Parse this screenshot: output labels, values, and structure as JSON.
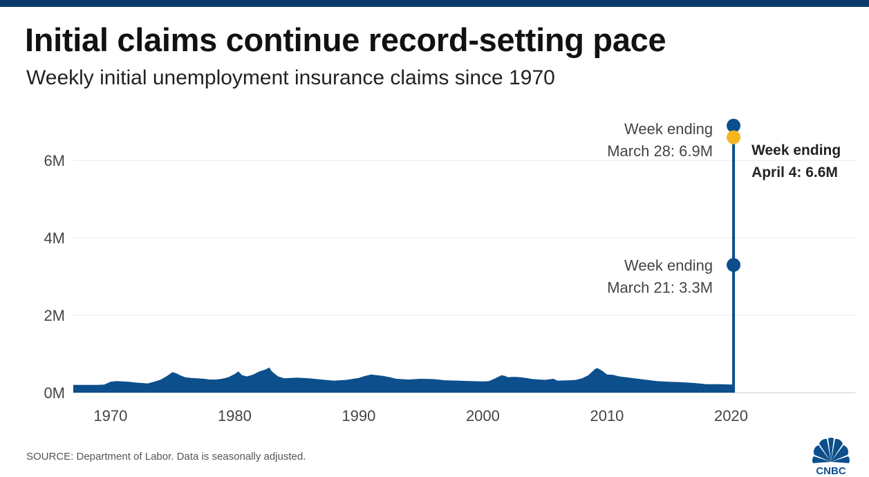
{
  "header": {
    "title": "Initial claims continue record-setting pace",
    "subtitle": "Weekly initial unemployment insurance claims since 1970"
  },
  "footer": {
    "source": "SOURCE: Department of Labor. Data is seasonally adjusted.",
    "logo_text": "CNBC"
  },
  "colors": {
    "series": "#0c4f8c",
    "highlight": "#f5b521",
    "grid": "#e6e6e6",
    "top_bar": "#0c3a6b"
  },
  "chart_data": {
    "type": "area",
    "title": "Initial claims continue record-setting pace",
    "subtitle": "Weekly initial unemployment insurance claims since 1970",
    "xlabel": "",
    "ylabel": "",
    "xlim": [
      1967,
      2030
    ],
    "ylim": [
      0,
      7.2
    ],
    "grid": true,
    "y_ticks": [
      {
        "value": 0,
        "label": "0M"
      },
      {
        "value": 2,
        "label": "2M"
      },
      {
        "value": 4,
        "label": "4M"
      },
      {
        "value": 6,
        "label": "6M"
      }
    ],
    "x_ticks": [
      {
        "value": 1970,
        "label": "1970"
      },
      {
        "value": 1980,
        "label": "1980"
      },
      {
        "value": 1990,
        "label": "1990"
      },
      {
        "value": 2000,
        "label": "2000"
      },
      {
        "value": 2010,
        "label": "2010"
      },
      {
        "value": 2020,
        "label": "2020"
      }
    ],
    "series": [
      {
        "name": "",
        "x": [
          1967.0,
          1968.0,
          1969.0,
          1969.5,
          1970.0,
          1970.5,
          1971.0,
          1971.5,
          1972.0,
          1972.5,
          1973.0,
          1973.5,
          1974.0,
          1974.5,
          1975.0,
          1975.3,
          1975.6,
          1976.0,
          1976.5,
          1977.0,
          1977.5,
          1978.0,
          1978.5,
          1979.0,
          1979.5,
          1980.0,
          1980.3,
          1980.6,
          1981.0,
          1981.5,
          1982.0,
          1982.5,
          1982.8,
          1983.0,
          1983.5,
          1984.0,
          1984.5,
          1985.0,
          1986.0,
          1987.0,
          1988.0,
          1989.0,
          1990.0,
          1990.5,
          1991.0,
          1991.5,
          1992.0,
          1992.5,
          1993.0,
          1994.0,
          1995.0,
          1996.0,
          1997.0,
          1998.0,
          1999.0,
          2000.0,
          2000.5,
          2001.0,
          2001.5,
          2001.8,
          2002.0,
          2002.5,
          2003.0,
          2003.5,
          2004.0,
          2005.0,
          2005.7,
          2006.0,
          2007.0,
          2007.5,
          2008.0,
          2008.5,
          2009.0,
          2009.2,
          2009.6,
          2010.0,
          2010.5,
          2011.0,
          2012.0,
          2013.0,
          2014.0,
          2015.0,
          2016.0,
          2017.0,
          2018.0,
          2019.0,
          2020.1
        ],
        "values": [
          0.2,
          0.2,
          0.2,
          0.21,
          0.28,
          0.3,
          0.29,
          0.28,
          0.26,
          0.25,
          0.24,
          0.28,
          0.33,
          0.42,
          0.53,
          0.5,
          0.45,
          0.4,
          0.38,
          0.37,
          0.36,
          0.34,
          0.34,
          0.36,
          0.4,
          0.48,
          0.55,
          0.45,
          0.42,
          0.47,
          0.55,
          0.6,
          0.65,
          0.55,
          0.42,
          0.37,
          0.38,
          0.39,
          0.37,
          0.34,
          0.31,
          0.33,
          0.38,
          0.43,
          0.47,
          0.45,
          0.43,
          0.4,
          0.36,
          0.34,
          0.36,
          0.35,
          0.32,
          0.31,
          0.3,
          0.29,
          0.3,
          0.37,
          0.45,
          0.43,
          0.4,
          0.41,
          0.4,
          0.38,
          0.35,
          0.33,
          0.36,
          0.31,
          0.32,
          0.33,
          0.37,
          0.45,
          0.6,
          0.64,
          0.57,
          0.47,
          0.46,
          0.42,
          0.38,
          0.34,
          0.3,
          0.28,
          0.27,
          0.25,
          0.22,
          0.22,
          0.21
        ]
      }
    ],
    "spike": {
      "x": 2020.2,
      "points": [
        {
          "value": 3.3,
          "label_lines": [
            "Week ending",
            "March 21: 3.3M"
          ],
          "highlight": false,
          "bold": false
        },
        {
          "value": 6.9,
          "label_lines": [
            "Week ending",
            "March 28: 6.9M"
          ],
          "highlight": false,
          "bold": false
        },
        {
          "value": 6.6,
          "label_lines": [
            "Week ending",
            "April 4: 6.6M"
          ],
          "highlight": true,
          "bold": true
        }
      ]
    },
    "legend": "none"
  }
}
